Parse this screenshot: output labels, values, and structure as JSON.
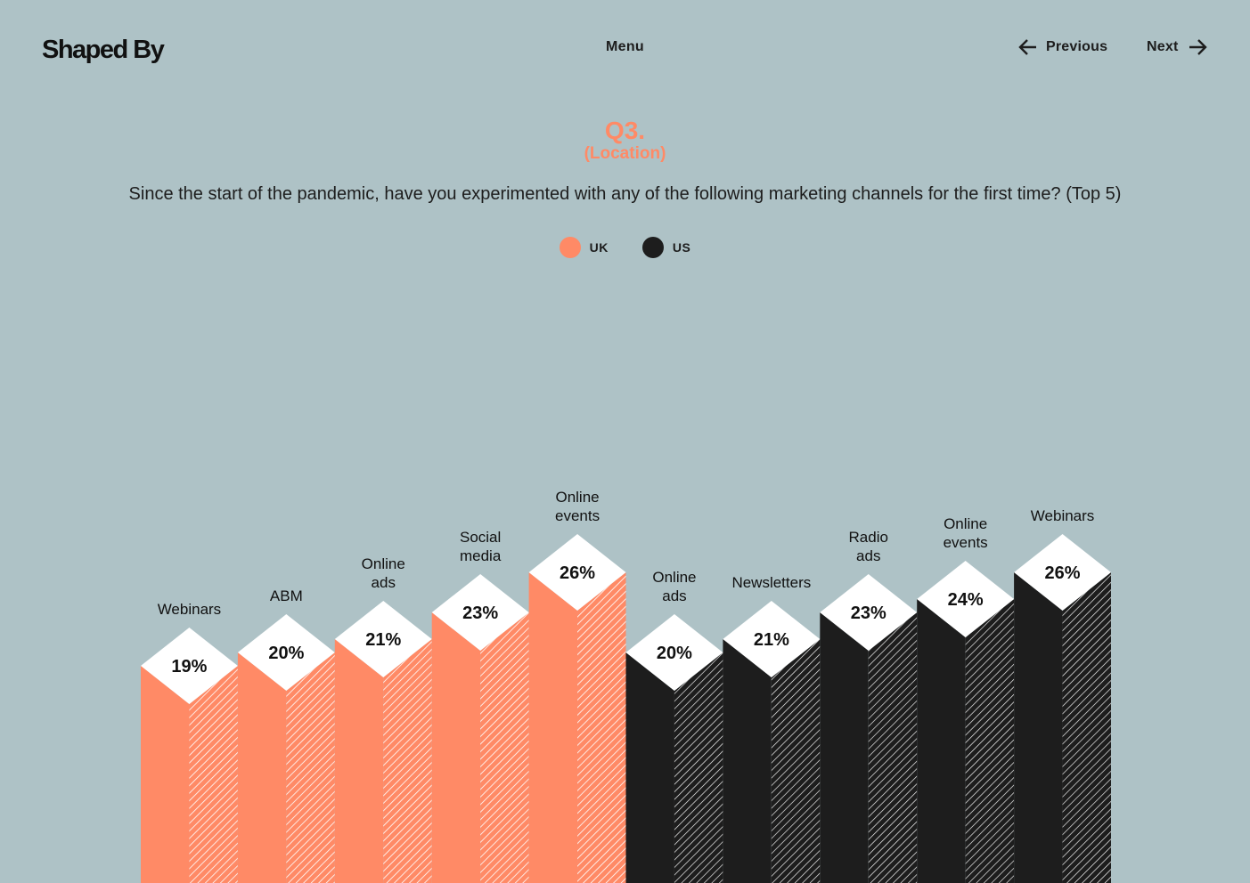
{
  "header": {
    "logo": "Shaped By",
    "menu_label": "Menu",
    "prev_label": "Previous",
    "next_label": "Next"
  },
  "question": {
    "number": "Q3.",
    "subtitle": "(Location)",
    "text": "Since the start of the pandemic, have you experimented with any of the following marketing channels for the first time? (Top 5)"
  },
  "colors": {
    "background": "#aec2c6",
    "uk": "#ff8a66",
    "us": "#1d1d1d",
    "cap": "#ffffff"
  },
  "legend": [
    {
      "name": "UK",
      "color": "#ff8a66"
    },
    {
      "name": "US",
      "color": "#1d1d1d"
    }
  ],
  "chart_data": {
    "type": "bar",
    "title": "",
    "series": [
      {
        "name": "UK",
        "categories": [
          [
            "Webinars"
          ],
          [
            "ABM"
          ],
          [
            "Online",
            "ads"
          ],
          [
            "Social",
            "media"
          ],
          [
            "Online",
            "events"
          ]
        ],
        "values": [
          19,
          20,
          21,
          23,
          26
        ]
      },
      {
        "name": "US",
        "categories": [
          [
            "Online",
            "ads"
          ],
          [
            "Newsletters"
          ],
          [
            "Radio",
            "ads"
          ],
          [
            "Online",
            "events"
          ],
          [
            "Webinars"
          ]
        ],
        "values": [
          20,
          21,
          23,
          24,
          26
        ]
      }
    ],
    "value_suffix": "%",
    "legend_position": "top-center",
    "grid": false
  }
}
